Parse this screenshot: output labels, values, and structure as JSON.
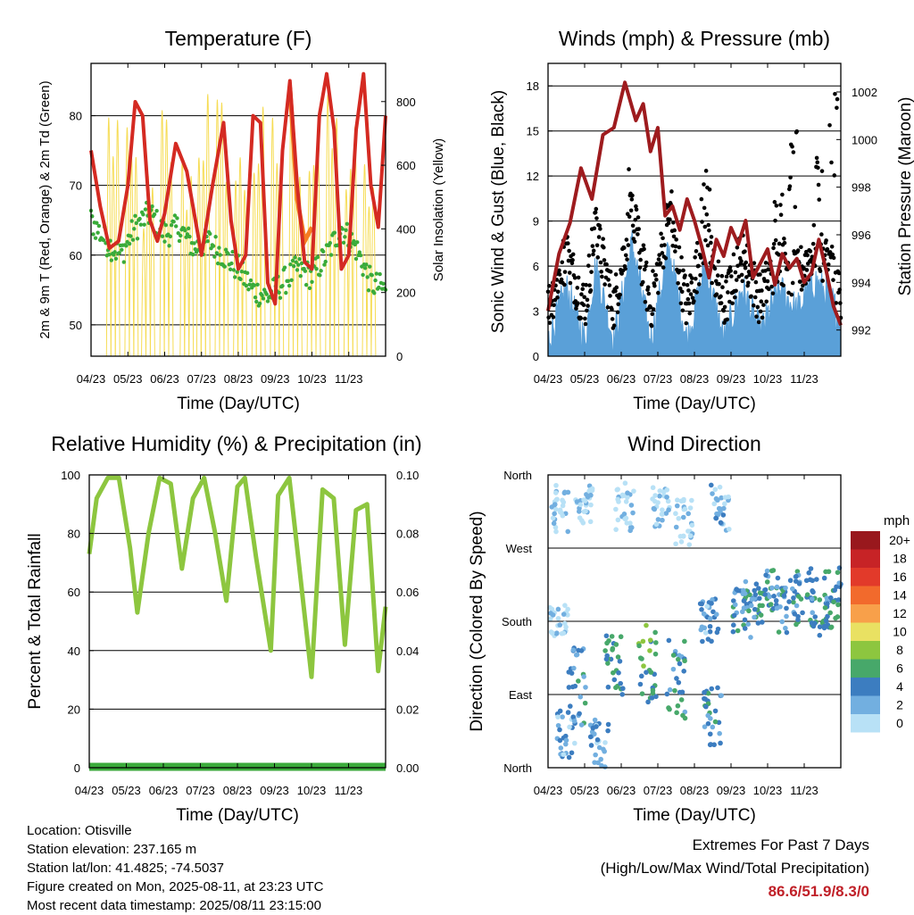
{
  "chart_data": [
    {
      "type": "line",
      "title": "Temperature (F)",
      "xlabel": "Time (Day/UTC)",
      "ylabel": "2m & 9m T (Red, Orange) & 2m Td (Green)",
      "y2label": "Solar Insolation (Yellow)",
      "x_ticks": [
        "04/23",
        "05/23",
        "06/23",
        "07/23",
        "08/23",
        "09/23",
        "10/23",
        "11/23"
      ],
      "ylim": [
        45.5,
        87.5
      ],
      "y_ticks": [
        50,
        60,
        70,
        80
      ],
      "y2lim": [
        0,
        920
      ],
      "y2_ticks": [
        0,
        200,
        400,
        600,
        800
      ],
      "grid": "horizontal",
      "colors": {
        "t2m": "#d42a22",
        "t9m": "#f57c22",
        "td": "#3aab3a",
        "solar": "#f6dc54"
      },
      "series": [
        {
          "key": "t2m",
          "x": [
            0,
            0.25,
            0.5,
            0.75,
            1,
            1.2,
            1.4,
            1.6,
            1.8,
            2,
            2.3,
            2.6,
            3,
            3.3,
            3.6,
            3.8,
            4,
            4.2,
            4.4,
            4.6,
            4.8,
            5,
            5.2,
            5.4,
            5.6,
            5.8,
            6,
            6.2,
            6.4,
            6.6,
            6.8,
            7,
            7.2,
            7.4,
            7.6,
            7.8,
            8
          ],
          "values": [
            75,
            67,
            61,
            62,
            70,
            82,
            80,
            65,
            62,
            66,
            76,
            72,
            60,
            70,
            79,
            65,
            58,
            60,
            80,
            79,
            56,
            53,
            75,
            85,
            70,
            59,
            58,
            80,
            86,
            78,
            58,
            60,
            78,
            86,
            70,
            64,
            80
          ]
        },
        {
          "key": "t9m",
          "x": [
            5.4,
            5.6,
            5.8,
            6.0
          ],
          "values": [
            84,
            68,
            62,
            64
          ]
        },
        {
          "key": "td",
          "x": [
            0,
            0.4,
            0.8,
            1.2,
            1.6,
            2,
            2.4,
            2.8,
            3.2,
            3.6,
            4,
            4.4,
            4.8,
            5.2,
            5.6,
            6,
            6.4,
            6.8,
            7.2,
            7.6,
            8
          ],
          "values": [
            65,
            62,
            60,
            64,
            66,
            63,
            64,
            61,
            62,
            60,
            58,
            55,
            54,
            56,
            58,
            57,
            60,
            64,
            61,
            56,
            55
          ]
        },
        {
          "key": "solar",
          "x": [
            0.6,
            1.1,
            1.55,
            2.05,
            2.6,
            3.05,
            3.55,
            4.05,
            4.55,
            5.05,
            5.55,
            6.05,
            6.55,
            7.05,
            7.55
          ],
          "values": [
            870,
            720,
            600,
            830,
            680,
            900,
            850,
            700,
            810,
            790,
            850,
            800,
            830,
            760,
            650
          ]
        }
      ]
    },
    {
      "type": "line",
      "title": "Winds (mph) & Pressure (mb)",
      "xlabel": "Time (Day/UTC)",
      "ylabel": "Sonic Wind & Gust (Blue, Black)",
      "y2label": "Station Pressure (Maroon)",
      "x_ticks": [
        "04/23",
        "05/23",
        "06/23",
        "07/23",
        "08/23",
        "09/23",
        "10/23",
        "11/23"
      ],
      "ylim": [
        0,
        19.5
      ],
      "y_ticks": [
        0,
        3,
        6,
        9,
        12,
        15,
        18
      ],
      "y2lim": [
        990.9,
        1003.2
      ],
      "y2_ticks": [
        992,
        994,
        996,
        998,
        1000,
        1002
      ],
      "grid": "horizontal",
      "colors": {
        "wind": "#5aa0d8",
        "gust": "#000000",
        "pressure": "#9e1b1e"
      },
      "series": [
        {
          "key": "pressure",
          "x": [
            0,
            0.3,
            0.6,
            0.9,
            1.2,
            1.5,
            1.8,
            2.1,
            2.4,
            2.6,
            2.8,
            3.0,
            3.2,
            3.4,
            3.6,
            3.8,
            4.0,
            4.2,
            4.4,
            4.6,
            4.8,
            5.0,
            5.2,
            5.4,
            5.6,
            5.8,
            6.0,
            6.2,
            6.4,
            6.6,
            6.8,
            7.0,
            7.2,
            7.4,
            7.6,
            7.8,
            8.0
          ],
          "values": [
            992.8,
            995.2,
            996.5,
            998.8,
            997.5,
            1000.2,
            1000.5,
            1002.4,
            1000.8,
            1001.5,
            999.5,
            1000.5,
            996.8,
            997.2,
            996.2,
            997.5,
            996.6,
            995.5,
            994.2,
            995.8,
            995.1,
            996.3,
            995.6,
            996.6,
            994.2,
            994.8,
            995.4,
            993.9,
            995.2,
            994.6,
            995.0,
            994.0,
            994.4,
            995.8,
            994.5,
            993.0,
            992.2
          ]
        },
        {
          "key": "wind",
          "x": [
            0,
            0.5,
            1.0,
            1.3,
            1.8,
            2.3,
            2.8,
            3.3,
            3.8,
            4.3,
            4.8,
            5.3,
            5.8,
            6.3,
            6.8,
            7.3,
            7.8,
            8.0
          ],
          "values": [
            1.0,
            4.5,
            1.0,
            6.0,
            1.0,
            7.5,
            1.0,
            7.0,
            1.0,
            6.0,
            1.0,
            4.5,
            1.5,
            4.5,
            3.0,
            5.0,
            3.5,
            2.0
          ]
        },
        {
          "key": "gust",
          "x": [
            0.5,
            1.3,
            2.3,
            3.3,
            4.3,
            5.3,
            6.3,
            6.7,
            7.4,
            7.8
          ],
          "values": [
            9.0,
            11.0,
            13.0,
            12.0,
            12.5,
            9.5,
            11.0,
            15.0,
            13.5,
            17.5
          ]
        }
      ]
    },
    {
      "type": "line",
      "title": "Relative Humidity (%) & Precipitation (in)",
      "xlabel": "Time (Day/UTC)",
      "ylabel": "Percent & Total Rainfall",
      "x_ticks": [
        "04/23",
        "05/23",
        "06/23",
        "07/23",
        "08/23",
        "09/23",
        "10/23",
        "11/23"
      ],
      "ylim": [
        0,
        100
      ],
      "y_ticks": [
        0,
        20,
        40,
        60,
        80,
        100
      ],
      "y2_ticks": [
        "0.00",
        "0.02",
        "0.04",
        "0.06",
        "0.08",
        "0.10"
      ],
      "grid": "horizontal",
      "colors": {
        "rh": "#8dc63f",
        "precip": "#3aab3a"
      },
      "series": [
        {
          "key": "rh",
          "x": [
            0,
            0.2,
            0.5,
            0.8,
            1.1,
            1.3,
            1.6,
            1.9,
            2.2,
            2.5,
            2.8,
            3.1,
            3.4,
            3.7,
            4.0,
            4.2,
            4.5,
            4.9,
            5.1,
            5.4,
            5.7,
            6.0,
            6.3,
            6.6,
            6.9,
            7.2,
            7.5,
            7.8,
            8.0
          ],
          "values": [
            73,
            92,
            99,
            99,
            75,
            53,
            80,
            99,
            97,
            68,
            92,
            99,
            80,
            57,
            96,
            99,
            72,
            40,
            93,
            99,
            65,
            31,
            95,
            92,
            42,
            88,
            90,
            33,
            55
          ]
        },
        {
          "key": "precip",
          "x": [
            0,
            8
          ],
          "values": [
            0,
            0
          ]
        }
      ]
    },
    {
      "type": "scatter",
      "title": "Wind Direction",
      "xlabel": "Time (Day/UTC)",
      "ylabel": "Direction (Colored By Speed)",
      "x_ticks": [
        "04/23",
        "05/23",
        "06/23",
        "07/23",
        "08/23",
        "09/23",
        "10/23",
        "11/23"
      ],
      "y_ticks": [
        "North",
        "East",
        "South",
        "West",
        "North"
      ],
      "ylim": [
        0,
        360
      ],
      "grid": "horizontal",
      "legend_title": "mph",
      "legend_labels": [
        "20+",
        "18",
        "16",
        "14",
        "12",
        "10",
        "8",
        "6",
        "4",
        "2",
        "0"
      ],
      "legend_colors": [
        "#99181d",
        "#c72326",
        "#e23a2a",
        "#f26a2c",
        "#f8a04a",
        "#e9e162",
        "#8dc63f",
        "#47a86a",
        "#3c7dc0",
        "#72afe0",
        "#b8e1f6"
      ],
      "legend_position": "right",
      "clusters": [
        {
          "x": 0.3,
          "dir": 320,
          "spread": 30,
          "speed": 1
        },
        {
          "x": 0.3,
          "dir": 180,
          "spread": 20,
          "speed": 1
        },
        {
          "x": 0.5,
          "dir": 40,
          "spread": 30,
          "speed": 3
        },
        {
          "x": 0.8,
          "dir": 100,
          "spread": 50,
          "speed": 4
        },
        {
          "x": 1.0,
          "dir": 325,
          "spread": 25,
          "speed": 1
        },
        {
          "x": 1.4,
          "dir": 30,
          "spread": 30,
          "speed": 3
        },
        {
          "x": 1.8,
          "dir": 130,
          "spread": 40,
          "speed": 6
        },
        {
          "x": 2.1,
          "dir": 320,
          "spread": 30,
          "speed": 1
        },
        {
          "x": 2.7,
          "dir": 130,
          "spread": 50,
          "speed": 6
        },
        {
          "x": 3.1,
          "dir": 320,
          "spread": 25,
          "speed": 1
        },
        {
          "x": 3.5,
          "dir": 110,
          "spread": 50,
          "speed": 5
        },
        {
          "x": 3.7,
          "dir": 300,
          "spread": 30,
          "speed": 1
        },
        {
          "x": 4.4,
          "dir": 180,
          "spread": 30,
          "speed": 3
        },
        {
          "x": 4.5,
          "dir": 60,
          "spread": 40,
          "speed": 4
        },
        {
          "x": 4.7,
          "dir": 320,
          "spread": 30,
          "speed": 2
        },
        {
          "x": 5.3,
          "dir": 190,
          "spread": 30,
          "speed": 4
        },
        {
          "x": 5.6,
          "dir": 200,
          "spread": 30,
          "speed": 4
        },
        {
          "x": 6.0,
          "dir": 220,
          "spread": 30,
          "speed": 5
        },
        {
          "x": 6.5,
          "dir": 200,
          "spread": 35,
          "speed": 4
        },
        {
          "x": 7.0,
          "dir": 210,
          "spread": 35,
          "speed": 5
        },
        {
          "x": 7.4,
          "dir": 200,
          "spread": 40,
          "speed": 5
        },
        {
          "x": 7.8,
          "dir": 210,
          "spread": 40,
          "speed": 5
        }
      ]
    }
  ],
  "info": {
    "location": "Location: Otisville",
    "elevation": "Station elevation: 237.165 m",
    "latlon": "Station lat/lon: 41.4825; -74.5037",
    "created": "Figure created on Mon, 2025-08-11, at 23:23 UTC",
    "recent": "Most recent data timestamp: 2025/08/11 23:15:00"
  },
  "extremes": {
    "title": "Extremes For Past 7 Days",
    "subtitle": "(High/Low/Max Wind/Total Precipitation)",
    "values": "86.6/51.9/8.3/0"
  }
}
